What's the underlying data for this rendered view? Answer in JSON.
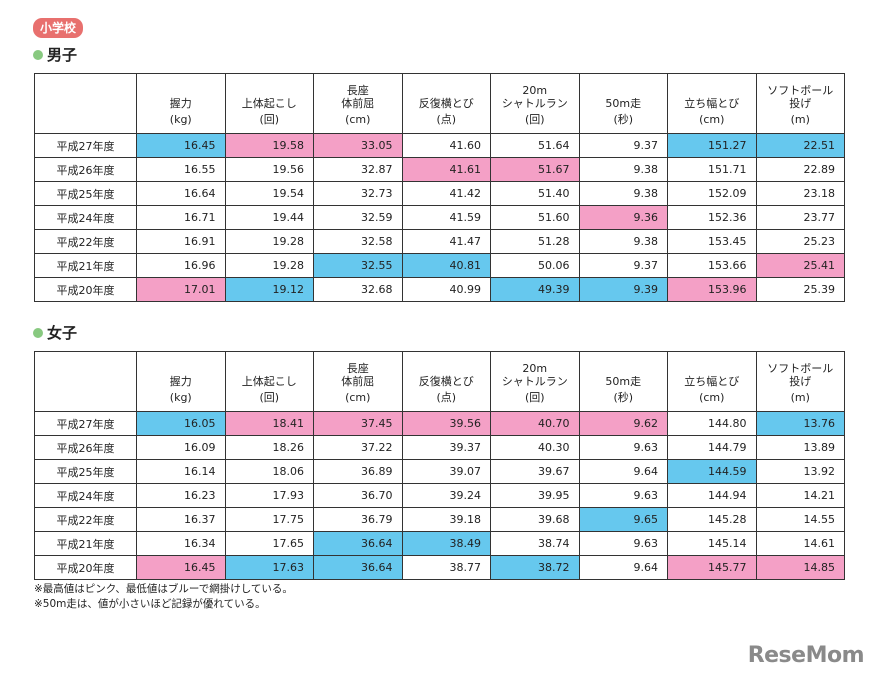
{
  "badge": "小学校",
  "boys": {
    "title": "男子",
    "rows": [
      {
        "year": "平成27年度",
        "cells": [
          {
            "v": "16.45",
            "hl": "blue"
          },
          {
            "v": "19.58",
            "hl": "pink"
          },
          {
            "v": "33.05",
            "hl": "pink"
          },
          {
            "v": "41.60",
            "hl": ""
          },
          {
            "v": "51.64",
            "hl": ""
          },
          {
            "v": "9.37",
            "hl": ""
          },
          {
            "v": "151.27",
            "hl": "blue"
          },
          {
            "v": "22.51",
            "hl": "blue"
          }
        ]
      },
      {
        "year": "平成26年度",
        "cells": [
          {
            "v": "16.55",
            "hl": ""
          },
          {
            "v": "19.56",
            "hl": ""
          },
          {
            "v": "32.87",
            "hl": ""
          },
          {
            "v": "41.61",
            "hl": "pink"
          },
          {
            "v": "51.67",
            "hl": "pink"
          },
          {
            "v": "9.38",
            "hl": ""
          },
          {
            "v": "151.71",
            "hl": ""
          },
          {
            "v": "22.89",
            "hl": ""
          }
        ]
      },
      {
        "year": "平成25年度",
        "cells": [
          {
            "v": "16.64",
            "hl": ""
          },
          {
            "v": "19.54",
            "hl": ""
          },
          {
            "v": "32.73",
            "hl": ""
          },
          {
            "v": "41.42",
            "hl": ""
          },
          {
            "v": "51.40",
            "hl": ""
          },
          {
            "v": "9.38",
            "hl": ""
          },
          {
            "v": "152.09",
            "hl": ""
          },
          {
            "v": "23.18",
            "hl": ""
          }
        ]
      },
      {
        "year": "平成24年度",
        "cells": [
          {
            "v": "16.71",
            "hl": ""
          },
          {
            "v": "19.44",
            "hl": ""
          },
          {
            "v": "32.59",
            "hl": ""
          },
          {
            "v": "41.59",
            "hl": ""
          },
          {
            "v": "51.60",
            "hl": ""
          },
          {
            "v": "9.36",
            "hl": "pink"
          },
          {
            "v": "152.36",
            "hl": ""
          },
          {
            "v": "23.77",
            "hl": ""
          }
        ]
      },
      {
        "year": "平成22年度",
        "cells": [
          {
            "v": "16.91",
            "hl": ""
          },
          {
            "v": "19.28",
            "hl": ""
          },
          {
            "v": "32.58",
            "hl": ""
          },
          {
            "v": "41.47",
            "hl": ""
          },
          {
            "v": "51.28",
            "hl": ""
          },
          {
            "v": "9.38",
            "hl": ""
          },
          {
            "v": "153.45",
            "hl": ""
          },
          {
            "v": "25.23",
            "hl": ""
          }
        ]
      },
      {
        "year": "平成21年度",
        "cells": [
          {
            "v": "16.96",
            "hl": ""
          },
          {
            "v": "19.28",
            "hl": ""
          },
          {
            "v": "32.55",
            "hl": "blue"
          },
          {
            "v": "40.81",
            "hl": "blue"
          },
          {
            "v": "50.06",
            "hl": ""
          },
          {
            "v": "9.37",
            "hl": ""
          },
          {
            "v": "153.66",
            "hl": ""
          },
          {
            "v": "25.41",
            "hl": "pink"
          }
        ]
      },
      {
        "year": "平成20年度",
        "cells": [
          {
            "v": "17.01",
            "hl": "pink"
          },
          {
            "v": "19.12",
            "hl": "blue"
          },
          {
            "v": "32.68",
            "hl": ""
          },
          {
            "v": "40.99",
            "hl": ""
          },
          {
            "v": "49.39",
            "hl": "blue"
          },
          {
            "v": "9.39",
            "hl": "blue"
          },
          {
            "v": "153.96",
            "hl": "pink"
          },
          {
            "v": "25.39",
            "hl": ""
          }
        ]
      }
    ]
  },
  "girls": {
    "title": "女子",
    "rows": [
      {
        "year": "平成27年度",
        "cells": [
          {
            "v": "16.05",
            "hl": "blue"
          },
          {
            "v": "18.41",
            "hl": "pink"
          },
          {
            "v": "37.45",
            "hl": "pink"
          },
          {
            "v": "39.56",
            "hl": "pink"
          },
          {
            "v": "40.70",
            "hl": "pink"
          },
          {
            "v": "9.62",
            "hl": "pink"
          },
          {
            "v": "144.80",
            "hl": ""
          },
          {
            "v": "13.76",
            "hl": "blue"
          }
        ]
      },
      {
        "year": "平成26年度",
        "cells": [
          {
            "v": "16.09",
            "hl": ""
          },
          {
            "v": "18.26",
            "hl": ""
          },
          {
            "v": "37.22",
            "hl": ""
          },
          {
            "v": "39.37",
            "hl": ""
          },
          {
            "v": "40.30",
            "hl": ""
          },
          {
            "v": "9.63",
            "hl": ""
          },
          {
            "v": "144.79",
            "hl": ""
          },
          {
            "v": "13.89",
            "hl": ""
          }
        ]
      },
      {
        "year": "平成25年度",
        "cells": [
          {
            "v": "16.14",
            "hl": ""
          },
          {
            "v": "18.06",
            "hl": ""
          },
          {
            "v": "36.89",
            "hl": ""
          },
          {
            "v": "39.07",
            "hl": ""
          },
          {
            "v": "39.67",
            "hl": ""
          },
          {
            "v": "9.64",
            "hl": ""
          },
          {
            "v": "144.59",
            "hl": "blue"
          },
          {
            "v": "13.92",
            "hl": ""
          }
        ]
      },
      {
        "year": "平成24年度",
        "cells": [
          {
            "v": "16.23",
            "hl": ""
          },
          {
            "v": "17.93",
            "hl": ""
          },
          {
            "v": "36.70",
            "hl": ""
          },
          {
            "v": "39.24",
            "hl": ""
          },
          {
            "v": "39.95",
            "hl": ""
          },
          {
            "v": "9.63",
            "hl": ""
          },
          {
            "v": "144.94",
            "hl": ""
          },
          {
            "v": "14.21",
            "hl": ""
          }
        ]
      },
      {
        "year": "平成22年度",
        "cells": [
          {
            "v": "16.37",
            "hl": ""
          },
          {
            "v": "17.75",
            "hl": ""
          },
          {
            "v": "36.79",
            "hl": ""
          },
          {
            "v": "39.18",
            "hl": ""
          },
          {
            "v": "39.68",
            "hl": ""
          },
          {
            "v": "9.65",
            "hl": "blue"
          },
          {
            "v": "145.28",
            "hl": ""
          },
          {
            "v": "14.55",
            "hl": ""
          }
        ]
      },
      {
        "year": "平成21年度",
        "cells": [
          {
            "v": "16.34",
            "hl": ""
          },
          {
            "v": "17.65",
            "hl": ""
          },
          {
            "v": "36.64",
            "hl": "blue"
          },
          {
            "v": "38.49",
            "hl": "blue"
          },
          {
            "v": "38.74",
            "hl": ""
          },
          {
            "v": "9.63",
            "hl": ""
          },
          {
            "v": "145.14",
            "hl": ""
          },
          {
            "v": "14.61",
            "hl": ""
          }
        ]
      },
      {
        "year": "平成20年度",
        "cells": [
          {
            "v": "16.45",
            "hl": "pink"
          },
          {
            "v": "17.63",
            "hl": "blue"
          },
          {
            "v": "36.64",
            "hl": "blue"
          },
          {
            "v": "38.77",
            "hl": ""
          },
          {
            "v": "38.72",
            "hl": "blue"
          },
          {
            "v": "9.64",
            "hl": ""
          },
          {
            "v": "145.77",
            "hl": "pink"
          },
          {
            "v": "14.85",
            "hl": "pink"
          }
        ]
      }
    ]
  },
  "columns": [
    {
      "name": "握力",
      "unit": "(kg)"
    },
    {
      "name": "上体起こし",
      "unit": "(回)"
    },
    {
      "name": "長座\n体前屈",
      "unit": "(cm)"
    },
    {
      "name": "反復横とび",
      "unit": "(点)"
    },
    {
      "name": "20m\nシャトルラン",
      "unit": "(回)"
    },
    {
      "name": "50m走",
      "unit": "(秒)"
    },
    {
      "name": "立ち幅とび",
      "unit": "(cm)"
    },
    {
      "name": "ソフトボール\n投げ",
      "unit": "(m)"
    }
  ],
  "notes": [
    "※最高値はピンク、最低値はブルーで網掛けしている。",
    "※50m走は、値が小さいほど記録が優れている。"
  ],
  "logo": "ReseMom",
  "colors": {
    "pink": "#f4a0c6",
    "blue": "#66c8ee",
    "badge": "#e8706e",
    "dot": "#88c980"
  }
}
